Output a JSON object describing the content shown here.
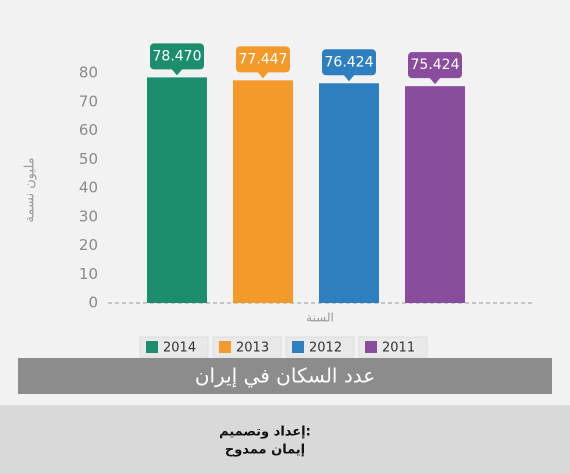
{
  "chart_data": {
    "type": "bar",
    "title": "عدد السكان في إيران",
    "y_label": "مليون نسمة",
    "x_label": "السنة",
    "categories": [
      "2014",
      "2013",
      "2012",
      "2011"
    ],
    "values": [
      78.47,
      77.447,
      76.424,
      75.424
    ],
    "value_labels": [
      "78.470",
      "77.447",
      "76.424",
      "75.424"
    ],
    "colors": [
      "#1c8d6d",
      "#f39a2b",
      "#2e7fc0",
      "#8a4c9d"
    ],
    "ylim": [
      0,
      80
    ],
    "yticks": [
      0,
      10,
      20,
      30,
      40,
      50,
      60,
      70,
      80
    ],
    "grid": false,
    "annotations": [
      "إعداد وتصميم:",
      "إيمان ممدوح"
    ]
  }
}
